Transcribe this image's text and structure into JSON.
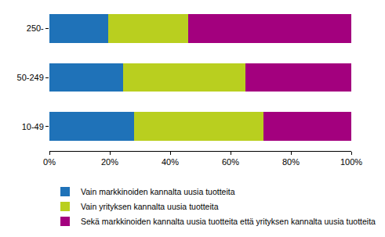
{
  "chart_data": {
    "type": "bar",
    "orientation": "horizontal",
    "stacked": true,
    "categories": [
      "10-49",
      "50-249",
      "250-"
    ],
    "series": [
      {
        "name": "Vain markkinoiden kannalta uusia tuotteita",
        "color": "#1f72b8",
        "values": [
          28,
          24.5,
          19.5
        ]
      },
      {
        "name": "Vain yrityksen kannalta uusia tuotteita",
        "color": "#b9cf1f",
        "values": [
          43,
          40.5,
          26.5
        ]
      },
      {
        "name": "Sekä markkinoiden kannalta uusia tuotteita että yrityksen kannalta uusia tuotteita",
        "color": "#a3007e",
        "values": [
          29,
          35,
          54
        ]
      }
    ],
    "xlim": [
      0,
      100
    ],
    "xticks": [
      {
        "value": 0,
        "label": "0%"
      },
      {
        "value": 20,
        "label": "20%"
      },
      {
        "value": 40,
        "label": "40%"
      },
      {
        "value": 60,
        "label": "60%"
      },
      {
        "value": 80,
        "label": "80%"
      },
      {
        "value": 100,
        "label": "100%"
      }
    ],
    "grid": false,
    "legend": "bottom"
  }
}
